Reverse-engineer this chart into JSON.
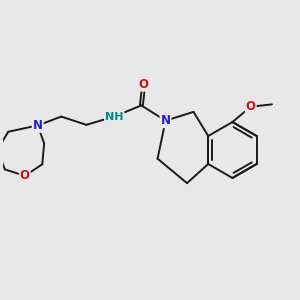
{
  "bg_color": "#e8e8e8",
  "bond_color": "#1a1a1a",
  "bond_width": 1.4,
  "N_color": "#2222cc",
  "O_color": "#cc1111",
  "NH_color": "#008888",
  "font_size": 8.5,
  "fig_bg": "#e8e8e8",
  "xlim": [
    0,
    10
  ],
  "ylim": [
    0,
    10
  ]
}
